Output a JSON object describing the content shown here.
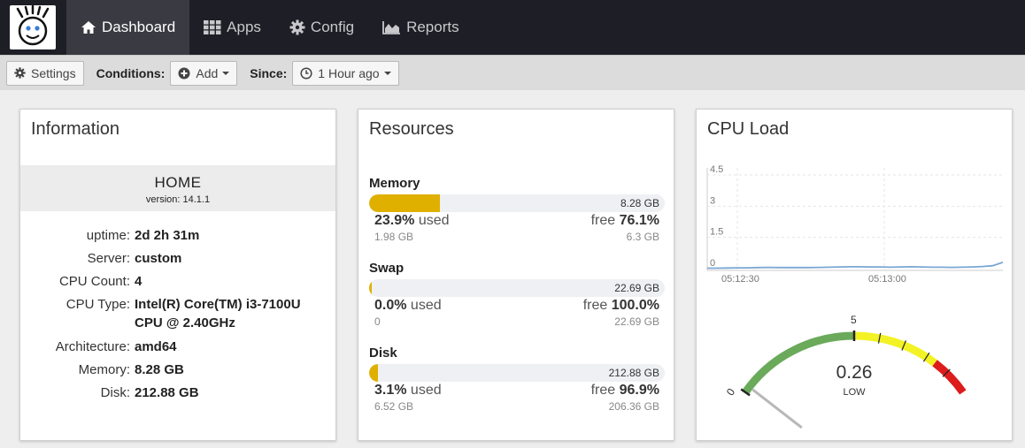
{
  "nav": {
    "items": [
      {
        "label": "Dashboard",
        "icon": "home-icon",
        "active": true
      },
      {
        "label": "Apps",
        "icon": "grid-icon"
      },
      {
        "label": "Config",
        "icon": "gear-icon"
      },
      {
        "label": "Reports",
        "icon": "area-chart-icon"
      }
    ]
  },
  "toolbar": {
    "settings_label": "Settings",
    "conditions_label": "Conditions:",
    "add_label": "Add",
    "since_label": "Since:",
    "since_value": "1 Hour ago"
  },
  "info": {
    "title": "Information",
    "host": "HOME",
    "version": "version: 14.1.1",
    "rows": [
      {
        "key": "uptime:",
        "value": "2d 2h 31m"
      },
      {
        "key": "Server:",
        "value": "custom"
      },
      {
        "key": "CPU Count:",
        "value": "4"
      },
      {
        "key": "CPU Type:",
        "value": "Intel(R) Core(TM) i3-7100U CPU @ 2.40GHz"
      },
      {
        "key": "Architecture:",
        "value": "amd64"
      },
      {
        "key": "Memory:",
        "value": "8.28 GB"
      },
      {
        "key": "Disk:",
        "value": "212.88 GB"
      }
    ]
  },
  "resources": {
    "title": "Resources",
    "items": [
      {
        "name": "Memory",
        "total": "8.28 GB",
        "used_pct": "23.9%",
        "used_word": " used",
        "used": "1.98 GB",
        "free_word": "free ",
        "free_pct": "76.1%",
        "free": "6.3 GB",
        "fill": 0.239
      },
      {
        "name": "Swap",
        "total": "22.69 GB",
        "used_pct": "0.0%",
        "used_word": " used",
        "used": "0",
        "free_word": "free ",
        "free_pct": "100.0%",
        "free": "22.69 GB",
        "fill": 0.0
      },
      {
        "name": "Disk",
        "total": "212.88 GB",
        "used_pct": "3.1%",
        "used_word": " used",
        "used": "6.52 GB",
        "free_word": "free ",
        "free_pct": "96.9%",
        "free": "206.36 GB",
        "fill": 0.031
      }
    ],
    "fill_color": "#e0b000"
  },
  "cpu": {
    "title": "CPU Load",
    "gauge_value": "0.26",
    "gauge_label": "LOW",
    "gauge_min_label": "0",
    "gauge_mid_label": "5",
    "gauge_fraction": 0.026
  },
  "chart_data": {
    "type": "line",
    "title": "",
    "xlabel": "",
    "ylabel": "",
    "x_ticks": [
      "05:12:30",
      "05:13:00"
    ],
    "y_ticks": [
      "0",
      "1.5",
      "3",
      "4.5"
    ],
    "ylim": [
      0,
      4.5
    ],
    "grid": true,
    "series": [
      {
        "values": [
          0.02,
          0.02,
          0.03,
          0.04,
          0.04,
          0.05,
          0.06,
          0.05,
          0.05,
          0.05,
          0.05,
          0.06,
          0.07,
          0.08,
          0.09,
          0.09,
          0.08,
          0.08,
          0.07,
          0.08,
          0.09,
          0.08,
          0.07,
          0.07,
          0.06,
          0.07,
          0.08,
          0.1,
          0.14,
          0.3
        ],
        "color": "#7aa7d4"
      }
    ]
  }
}
